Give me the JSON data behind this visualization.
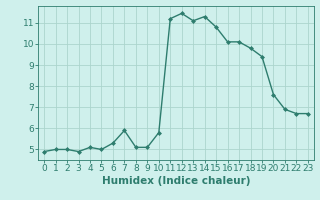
{
  "x": [
    0,
    1,
    2,
    3,
    4,
    5,
    6,
    7,
    8,
    9,
    10,
    11,
    12,
    13,
    14,
    15,
    16,
    17,
    18,
    19,
    20,
    21,
    22,
    23
  ],
  "y": [
    4.9,
    5.0,
    5.0,
    4.9,
    5.1,
    5.0,
    5.3,
    5.9,
    5.1,
    5.1,
    5.8,
    11.2,
    11.45,
    11.1,
    11.3,
    10.8,
    10.1,
    10.1,
    9.8,
    9.4,
    7.6,
    6.9,
    6.7,
    6.7
  ],
  "line_color": "#2e7d6e",
  "marker": "D",
  "marker_size": 2.0,
  "bg_color": "#cff0ec",
  "grid_color": "#acd5cd",
  "xlabel": "Humidex (Indice chaleur)",
  "ylim": [
    4.5,
    11.8
  ],
  "xlim": [
    -0.5,
    23.5
  ],
  "yticks": [
    5,
    6,
    7,
    8,
    9,
    10,
    11
  ],
  "xticks": [
    0,
    1,
    2,
    3,
    4,
    5,
    6,
    7,
    8,
    9,
    10,
    11,
    12,
    13,
    14,
    15,
    16,
    17,
    18,
    19,
    20,
    21,
    22,
    23
  ],
  "tick_color": "#2e7d6e",
  "label_color": "#2e7d6e",
  "xlabel_fontsize": 7.5,
  "tick_fontsize": 6.5,
  "linewidth": 1.0
}
